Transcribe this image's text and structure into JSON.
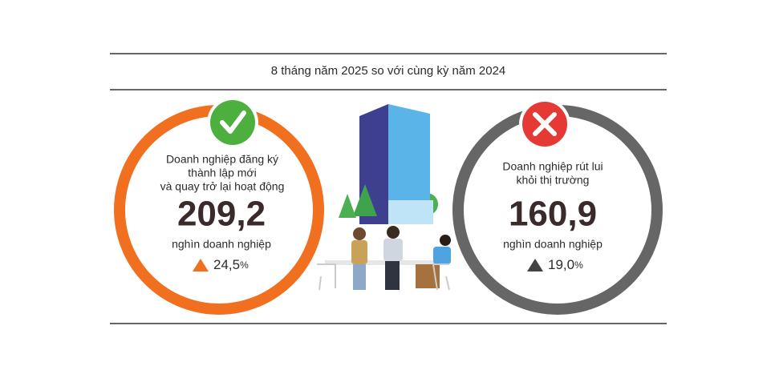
{
  "header": {
    "title": "8 tháng năm 2025 so với cùng kỳ năm 2024"
  },
  "left": {
    "label_lines": [
      "Doanh nghiệp đăng ký",
      "thành lập mới",
      "và quay trở lại hoạt động"
    ],
    "value": "209,2",
    "unit": "nghìn doanh nghiệp",
    "change": "24,5",
    "change_unit": "%"
  },
  "right": {
    "label_lines": [
      "Doanh nghiệp rút lui",
      "khỏi thị trường"
    ],
    "value": "160,9",
    "unit": "nghìn doanh nghiệp",
    "change": "19,0",
    "change_unit": "%"
  }
}
